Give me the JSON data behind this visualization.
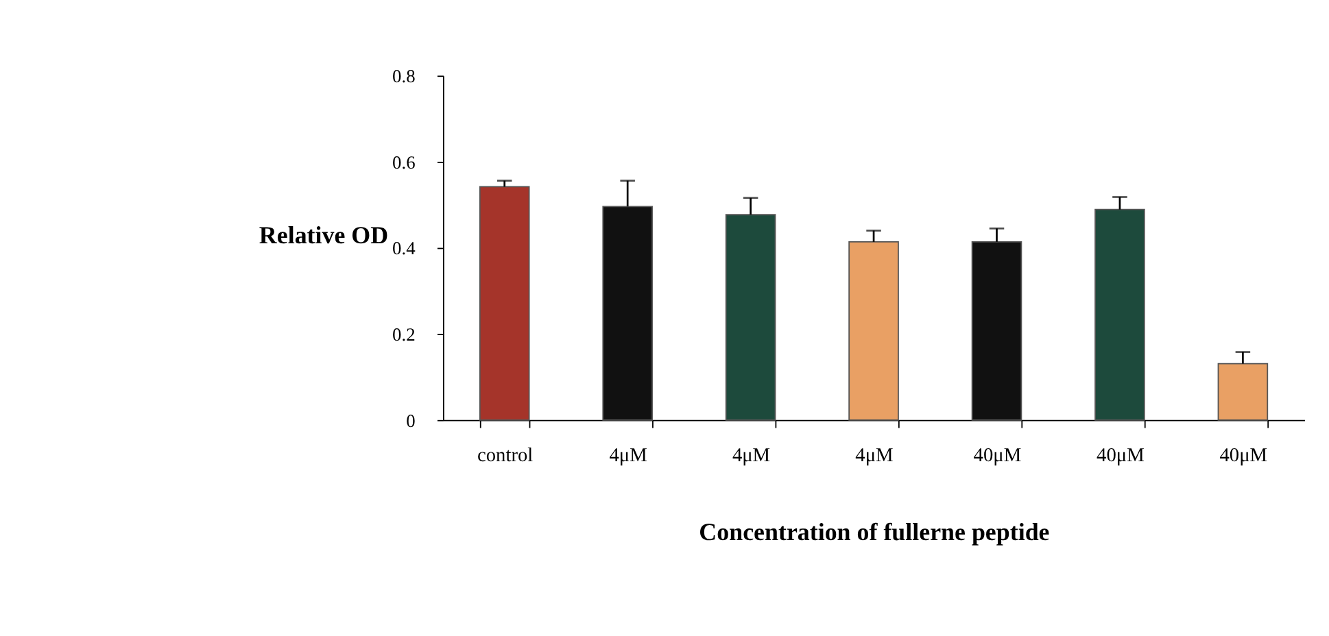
{
  "chart_data": {
    "type": "bar",
    "xlabel": "Concentration of fullerne peptide",
    "ylabel": "Relative OD",
    "categories": [
      "control",
      "4μM",
      "4μM",
      "4μM",
      "40μM",
      "40μM",
      "40μM"
    ],
    "values": [
      0.542,
      0.496,
      0.477,
      0.414,
      0.414,
      0.489,
      0.131
    ],
    "errors": [
      [
        0.542,
        0.556
      ],
      [
        0.496,
        0.556
      ],
      [
        0.477,
        0.516
      ],
      [
        0.414,
        0.44
      ],
      [
        0.414,
        0.445
      ],
      [
        0.489,
        0.518
      ],
      [
        0.131,
        0.158
      ]
    ],
    "colors": [
      "#a5342a",
      "#111111",
      "#1d4a3c",
      "#e9a064",
      "#111111",
      "#1d4a3c",
      "#e9a064"
    ],
    "ylim": [
      0,
      0.8
    ],
    "yticks": [
      0,
      0.2,
      0.4,
      0.6,
      0.8
    ],
    "grid": false
  }
}
